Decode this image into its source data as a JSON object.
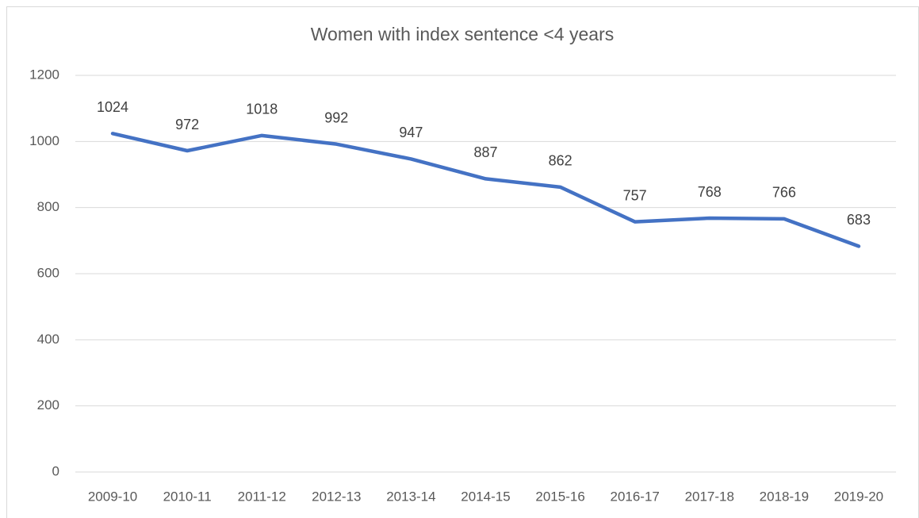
{
  "chart_data": {
    "type": "line",
    "title": "Women with index sentence <4 years",
    "categories": [
      "2009-10",
      "2010-11",
      "2011-12",
      "2012-13",
      "2013-14",
      "2014-15",
      "2015-16",
      "2016-17",
      "2017-18",
      "2018-19",
      "2019-20"
    ],
    "values": [
      1024,
      972,
      1018,
      992,
      947,
      887,
      862,
      757,
      768,
      766,
      683
    ],
    "color": "#4472c4",
    "ylim": [
      0,
      1200
    ],
    "yticks": [
      0,
      200,
      400,
      600,
      800,
      1000,
      1200
    ],
    "grid": true
  }
}
